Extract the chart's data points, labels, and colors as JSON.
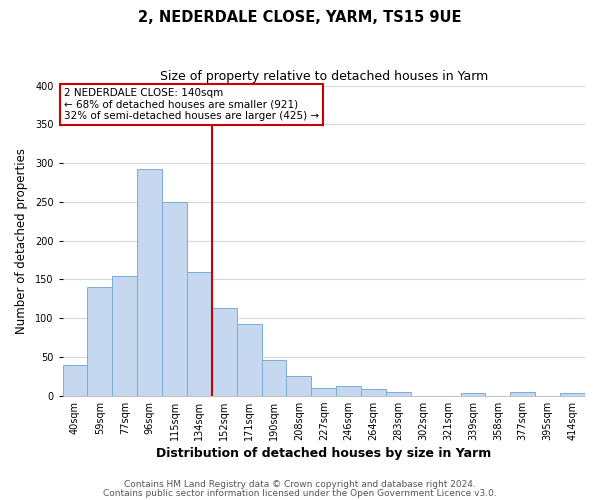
{
  "title": "2, NEDERDALE CLOSE, YARM, TS15 9UE",
  "subtitle": "Size of property relative to detached houses in Yarm",
  "xlabel": "Distribution of detached houses by size in Yarm",
  "ylabel": "Number of detached properties",
  "bar_labels": [
    "40sqm",
    "59sqm",
    "77sqm",
    "96sqm",
    "115sqm",
    "134sqm",
    "152sqm",
    "171sqm",
    "190sqm",
    "208sqm",
    "227sqm",
    "246sqm",
    "264sqm",
    "283sqm",
    "302sqm",
    "321sqm",
    "339sqm",
    "358sqm",
    "377sqm",
    "395sqm",
    "414sqm"
  ],
  "bar_values": [
    40,
    140,
    155,
    292,
    250,
    160,
    113,
    92,
    46,
    25,
    10,
    13,
    8,
    5,
    0,
    0,
    3,
    0,
    5,
    0,
    3
  ],
  "bar_color": "#c5d8f0",
  "bar_edge_color": "#7aadd4",
  "vline_x": 5.5,
  "vline_color": "#cc0000",
  "annotation_title": "2 NEDERDALE CLOSE: 140sqm",
  "annotation_line1": "← 68% of detached houses are smaller (921)",
  "annotation_line2": "32% of semi-detached houses are larger (425) →",
  "annotation_box_color": "#ffffff",
  "annotation_box_edge": "#cc0000",
  "ylim": [
    0,
    400
  ],
  "yticks": [
    0,
    50,
    100,
    150,
    200,
    250,
    300,
    350,
    400
  ],
  "footer1": "Contains HM Land Registry data © Crown copyright and database right 2024.",
  "footer2": "Contains public sector information licensed under the Open Government Licence v3.0.",
  "bg_color": "#ffffff",
  "plot_bg_color": "#ffffff",
  "grid_color": "#d0d8e8",
  "title_fontsize": 10.5,
  "subtitle_fontsize": 9,
  "xlabel_fontsize": 9,
  "ylabel_fontsize": 8.5,
  "tick_fontsize": 7,
  "footer_fontsize": 6.5,
  "annotation_fontsize": 7.5
}
